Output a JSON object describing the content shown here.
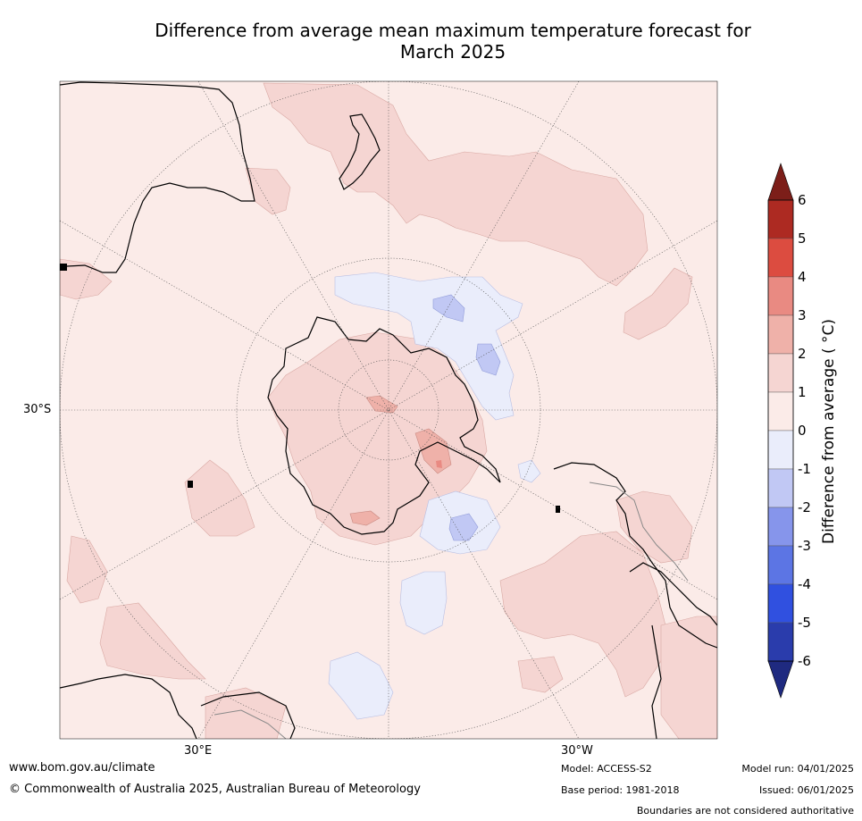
{
  "title_line1": "Difference from average mean maximum temperature forecast for",
  "title_line2": "March 2025",
  "latitude_label": "30°S",
  "longitude_labels": {
    "east": "30°E",
    "west": "30°W"
  },
  "colorbar": {
    "label": "Difference from average ( °C)",
    "ticks": [
      "6",
      "5",
      "4",
      "3",
      "2",
      "1",
      "0",
      "-1",
      "-2",
      "-3",
      "-4",
      "-5",
      "-6"
    ],
    "colors_warm": [
      "#7c1e19",
      "#ad2a22",
      "#dc4c40",
      "#e98a82",
      "#efb1a9",
      "#f5d5d2",
      "#fbebe8"
    ],
    "colors_cool": [
      "#eaedfb",
      "#c1c8f4",
      "#8695eb",
      "#5c75e4",
      "#3050e0",
      "#2a3cac",
      "#1f2a80"
    ]
  },
  "footer": {
    "website": "www.bom.gov.au/climate",
    "copyright": "© Commonwealth of Australia 2025, Australian Bureau of Meteorology",
    "model": "Model: ACCESS-S2",
    "base_period": "Base period: 1981-2018",
    "model_run": "Model run: 04/01/2025",
    "issued": "Issued: 06/01/2025",
    "disclaimer": "Boundaries are not considered authoritative"
  }
}
